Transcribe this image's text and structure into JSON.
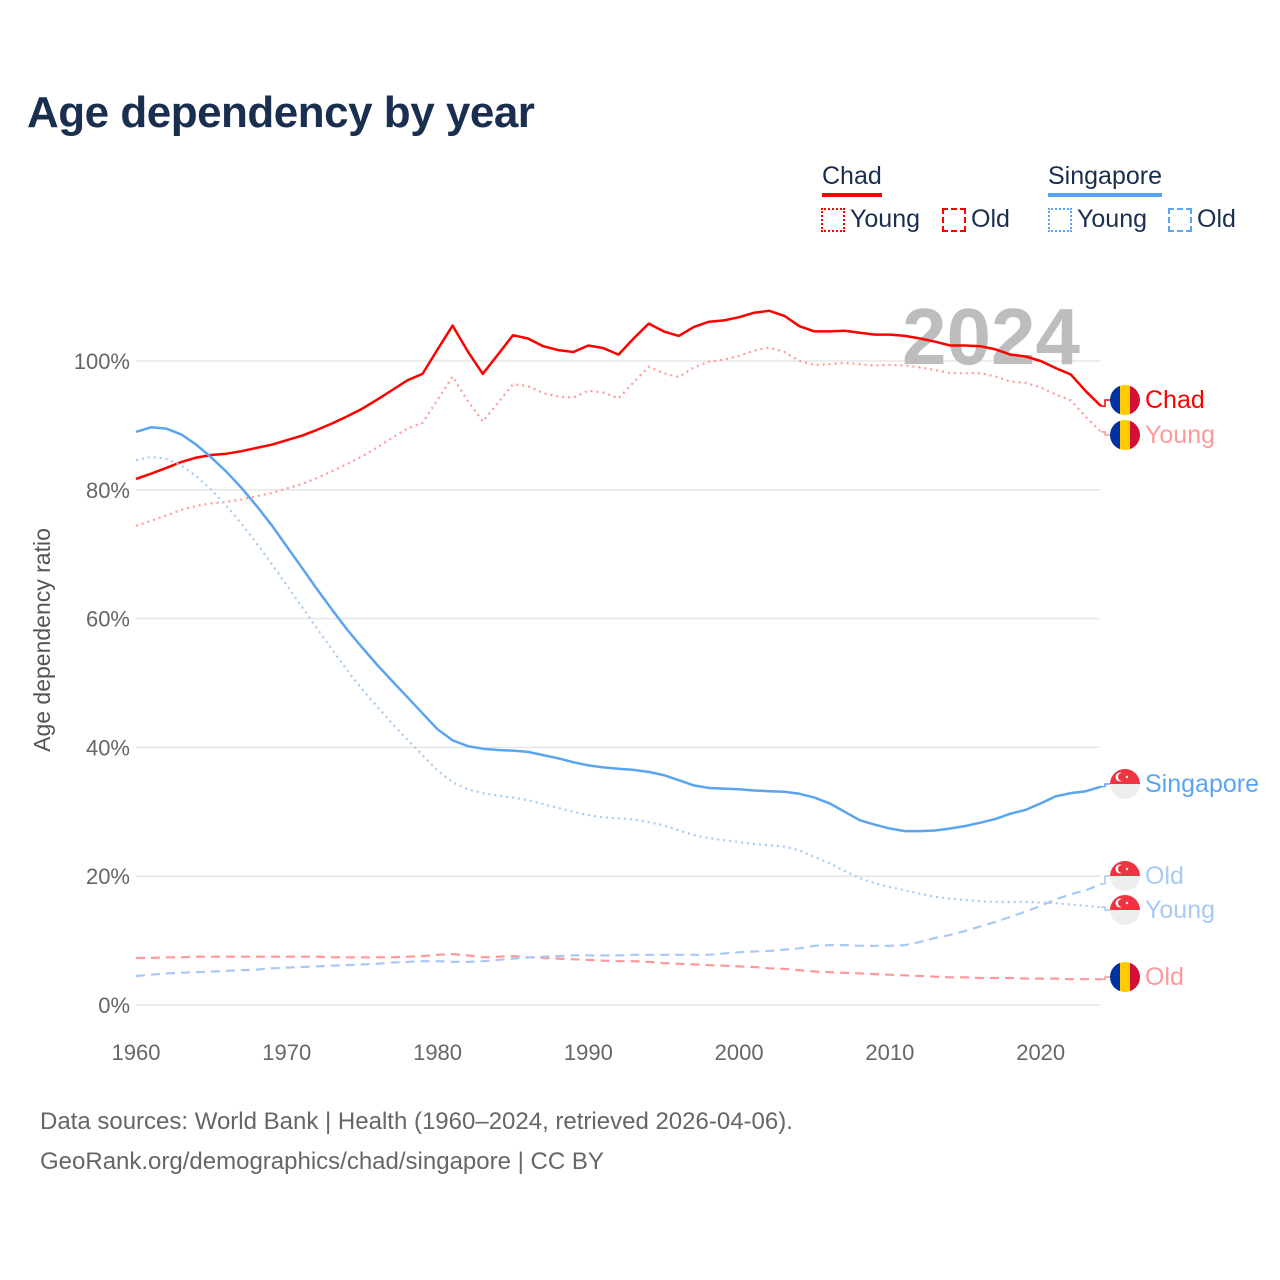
{
  "title": "Age dependency by year",
  "legend": {
    "groups": [
      {
        "name": "Chad",
        "color": "#ff0000",
        "items": [
          "Young",
          "Old"
        ]
      },
      {
        "name": "Singapore",
        "color": "#5ba4ef",
        "items": [
          "Young",
          "Old"
        ]
      }
    ]
  },
  "footer": {
    "line1": "Data sources: World Bank | Health (1960–2024, retrieved 2026-04-06).",
    "line2": "GeoRank.org/demographics/chad/singapore | CC BY"
  },
  "chart_data": {
    "type": "line",
    "title": "Age dependency by year",
    "ylabel": "Age dependency ratio",
    "xlabel": "",
    "year_watermark": "2024",
    "xlim": [
      1960,
      2024
    ],
    "ylim": [
      0,
      110
    ],
    "x_ticks": [
      "1960",
      "1970",
      "1980",
      "1990",
      "2000",
      "2010",
      "2020"
    ],
    "y_ticks": [
      "0%",
      "20%",
      "40%",
      "60%",
      "80%",
      "100%"
    ],
    "grid": true,
    "x_start": 1960,
    "series": [
      {
        "name": "Chad",
        "label": "Chad",
        "style": "solid",
        "color": "#ff0000",
        "flag": "chad",
        "values": [
          81.7,
          82.5,
          83.4,
          84.3,
          85.0,
          85.4,
          85.6,
          86.0,
          86.5,
          87.0,
          87.7,
          88.4,
          89.3,
          90.3,
          91.4,
          92.6,
          94.0,
          95.5,
          97.0,
          98.0,
          101.8,
          105.5,
          101.5,
          98.0,
          101.0,
          104.0,
          103.5,
          102.3,
          101.7,
          101.4,
          102.4,
          102.0,
          101.0,
          103.5,
          105.8,
          104.6,
          103.9,
          105.3,
          106.1,
          106.3,
          106.8,
          107.5,
          107.8,
          107.0,
          105.4,
          104.6,
          104.6,
          104.7,
          104.4,
          104.1,
          104.1,
          103.9,
          103.5,
          103.0,
          102.4,
          102.4,
          102.3,
          101.8,
          101.0,
          100.7,
          100.0,
          98.9,
          97.9,
          95.3,
          93.0
        ]
      },
      {
        "name": "Chad Young",
        "label": "Young",
        "style": "dotted",
        "color": "#ff9999",
        "flag": "chad",
        "values": [
          74.4,
          75.2,
          76.0,
          76.9,
          77.5,
          77.9,
          78.1,
          78.5,
          79.0,
          79.5,
          80.2,
          80.9,
          81.8,
          82.9,
          84.0,
          85.2,
          86.6,
          88.1,
          89.5,
          90.4,
          94.0,
          97.6,
          93.8,
          90.6,
          93.5,
          96.4,
          96.1,
          95.0,
          94.5,
          94.3,
          95.4,
          95.1,
          94.2,
          96.7,
          99.1,
          98.1,
          97.5,
          99.0,
          99.9,
          100.2,
          100.8,
          101.6,
          102.1,
          101.4,
          100.0,
          99.4,
          99.5,
          99.7,
          99.5,
          99.3,
          99.4,
          99.3,
          99.0,
          98.6,
          98.1,
          98.1,
          98.1,
          97.6,
          96.8,
          96.6,
          95.9,
          94.8,
          93.9,
          91.3,
          89.0
        ]
      },
      {
        "name": "Chad Old",
        "label": "Old",
        "style": "dashed",
        "color": "#ff9999",
        "flag": "chad",
        "values": [
          7.3,
          7.3,
          7.4,
          7.4,
          7.5,
          7.5,
          7.5,
          7.5,
          7.5,
          7.5,
          7.5,
          7.5,
          7.5,
          7.4,
          7.4,
          7.4,
          7.4,
          7.4,
          7.5,
          7.6,
          7.8,
          7.9,
          7.7,
          7.4,
          7.5,
          7.6,
          7.4,
          7.3,
          7.2,
          7.1,
          7.0,
          6.9,
          6.8,
          6.8,
          6.7,
          6.5,
          6.4,
          6.3,
          6.2,
          6.1,
          6.0,
          5.9,
          5.7,
          5.6,
          5.4,
          5.2,
          5.1,
          5.0,
          4.9,
          4.8,
          4.7,
          4.6,
          4.5,
          4.4,
          4.3,
          4.3,
          4.2,
          4.2,
          4.2,
          4.1,
          4.1,
          4.1,
          4.0,
          4.0,
          4.0
        ]
      },
      {
        "name": "Singapore",
        "label": "Singapore",
        "style": "solid",
        "color": "#5ba4ef",
        "flag": "singapore",
        "values": [
          89.0,
          89.7,
          89.5,
          88.6,
          87.0,
          85.0,
          82.8,
          80.3,
          77.5,
          74.5,
          71.2,
          67.9,
          64.6,
          61.4,
          58.3,
          55.5,
          52.8,
          50.3,
          47.8,
          45.3,
          42.8,
          41.1,
          40.2,
          39.8,
          39.6,
          39.5,
          39.3,
          38.8,
          38.3,
          37.7,
          37.2,
          36.9,
          36.7,
          36.5,
          36.2,
          35.7,
          34.9,
          34.1,
          33.7,
          33.6,
          33.5,
          33.3,
          33.2,
          33.1,
          32.8,
          32.2,
          31.3,
          30.0,
          28.7,
          28.0,
          27.4,
          27.0,
          27.0,
          27.1,
          27.4,
          27.8,
          28.3,
          28.9,
          29.7,
          30.3,
          31.3,
          32.4,
          32.9,
          33.2,
          33.9
        ]
      },
      {
        "name": "Singapore Old",
        "label": "Old",
        "style": "dashed",
        "color": "#a7c9f3",
        "flag": "singapore",
        "values": [
          4.5,
          4.7,
          4.9,
          5.0,
          5.1,
          5.2,
          5.3,
          5.4,
          5.5,
          5.7,
          5.8,
          5.9,
          6.0,
          6.1,
          6.2,
          6.3,
          6.4,
          6.6,
          6.7,
          6.8,
          6.8,
          6.7,
          6.7,
          6.8,
          7.0,
          7.2,
          7.4,
          7.5,
          7.6,
          7.7,
          7.7,
          7.7,
          7.7,
          7.8,
          7.8,
          7.8,
          7.8,
          7.8,
          7.8,
          8.0,
          8.2,
          8.3,
          8.4,
          8.6,
          8.8,
          9.2,
          9.3,
          9.3,
          9.2,
          9.2,
          9.2,
          9.3,
          9.8,
          10.4,
          10.9,
          11.5,
          12.2,
          12.9,
          13.7,
          14.5,
          15.4,
          16.4,
          17.2,
          17.8,
          18.8
        ]
      },
      {
        "name": "Singapore Young",
        "label": "Young",
        "style": "dotted",
        "color": "#a7c9f3",
        "flag": "singapore",
        "values": [
          84.6,
          85.1,
          84.8,
          83.8,
          82.1,
          80.0,
          77.5,
          74.7,
          71.7,
          68.5,
          65.2,
          61.8,
          58.5,
          55.2,
          52.0,
          49.0,
          46.3,
          43.7,
          41.2,
          38.8,
          36.4,
          34.6,
          33.5,
          32.9,
          32.5,
          32.2,
          31.8,
          31.2,
          30.6,
          30.0,
          29.5,
          29.1,
          29.0,
          28.8,
          28.4,
          27.9,
          27.1,
          26.4,
          25.9,
          25.6,
          25.3,
          25.0,
          24.8,
          24.6,
          24.0,
          23.0,
          22.0,
          20.8,
          19.7,
          18.9,
          18.3,
          17.8,
          17.3,
          16.8,
          16.5,
          16.3,
          16.1,
          16.0,
          16.0,
          16.0,
          15.9,
          15.8,
          15.6,
          15.4,
          15.2
        ]
      }
    ]
  }
}
